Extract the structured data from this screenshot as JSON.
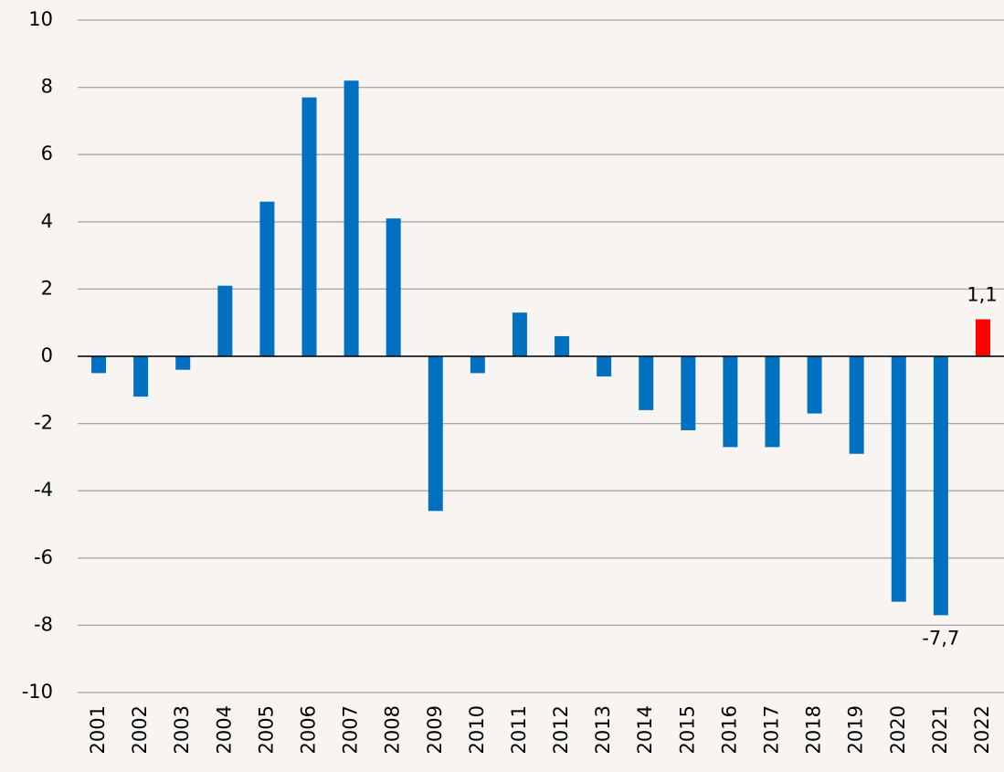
{
  "chart_data": {
    "type": "bar",
    "categories": [
      "2001",
      "2002",
      "2003",
      "2004",
      "2005",
      "2006",
      "2007",
      "2008",
      "2009",
      "2010",
      "2011",
      "2012",
      "2013",
      "2014",
      "2015",
      "2016",
      "2017",
      "2018",
      "2019",
      "2020",
      "2021",
      "2022"
    ],
    "values": [
      -0.5,
      -1.2,
      -0.4,
      2.1,
      4.6,
      7.7,
      8.2,
      4.1,
      -4.6,
      -0.5,
      1.3,
      0.6,
      -0.6,
      -1.6,
      -2.2,
      -2.7,
      -2.7,
      -1.7,
      -2.9,
      -7.3,
      -7.7,
      1.1
    ],
    "value_labels": [
      null,
      null,
      null,
      null,
      null,
      null,
      null,
      null,
      null,
      null,
      null,
      null,
      null,
      null,
      null,
      null,
      null,
      null,
      null,
      null,
      "-7,7",
      "1,1"
    ],
    "colors": [
      "#0070c0",
      "#0070c0",
      "#0070c0",
      "#0070c0",
      "#0070c0",
      "#0070c0",
      "#0070c0",
      "#0070c0",
      "#0070c0",
      "#0070c0",
      "#0070c0",
      "#0070c0",
      "#0070c0",
      "#0070c0",
      "#0070c0",
      "#0070c0",
      "#0070c0",
      "#0070c0",
      "#0070c0",
      "#0070c0",
      "#0070c0",
      "#ff0000"
    ],
    "ylim": [
      -10,
      10
    ],
    "yticks": [
      -10,
      -8,
      -6,
      -4,
      -2,
      0,
      2,
      4,
      6,
      8,
      10
    ],
    "grid": true
  }
}
